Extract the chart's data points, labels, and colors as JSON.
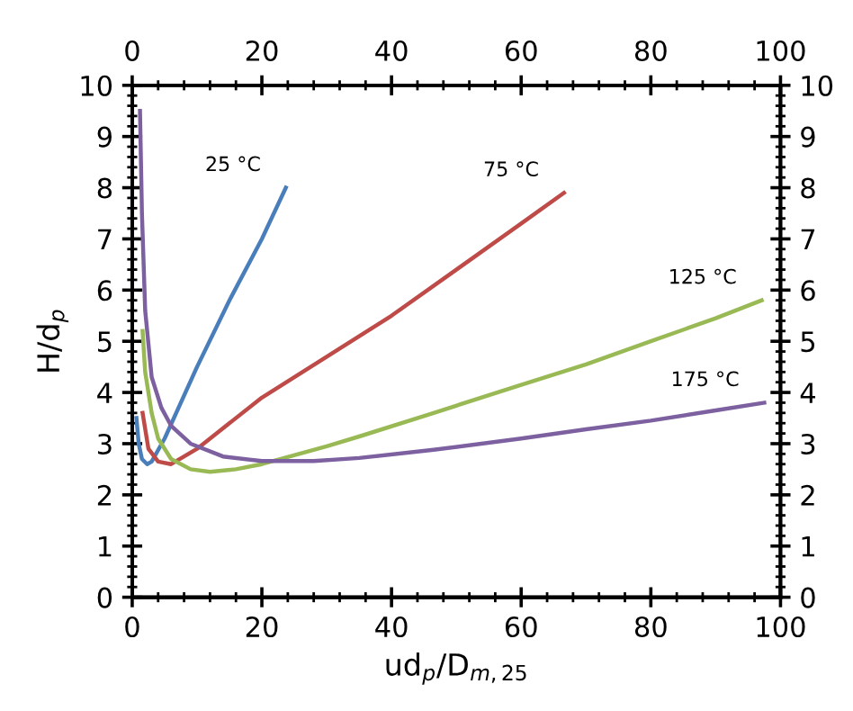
{
  "chart_data": {
    "type": "line",
    "xlabel": "ud$_{p}$/D$_{m,25}$",
    "ylabel": "H/d$_{p}$",
    "xlim": [
      0,
      100
    ],
    "xticks": [
      0,
      20,
      40,
      60,
      80,
      100
    ],
    "ylim": [
      0,
      10
    ],
    "yticks": [
      0,
      1,
      2,
      3,
      4,
      5,
      6,
      7,
      8,
      9,
      10
    ],
    "x2lim": [
      0,
      100
    ],
    "x2ticks": [
      0,
      20,
      40,
      60,
      80,
      100
    ],
    "y2lim": [
      0,
      10
    ],
    "y2ticks": [
      0,
      1,
      2,
      3,
      4,
      5,
      6,
      7,
      8,
      9,
      10
    ],
    "grid": false,
    "legend": false,
    "marker": "none",
    "line_style": "solid",
    "series": [
      {
        "name": "25 °C",
        "color": "#4a7ebb",
        "x": [
          0.65,
          1.0,
          1.5,
          2.3,
          3,
          5,
          10,
          15,
          20,
          23.7
        ],
        "values": [
          3.5,
          3.0,
          2.7,
          2.6,
          2.65,
          3.1,
          4.5,
          5.8,
          7.0,
          8.0
        ]
      },
      {
        "name": "75 °C",
        "color": "#be4b48",
        "x": [
          1.6,
          2.5,
          4,
          6,
          10,
          20,
          30,
          40,
          50,
          60,
          66.6
        ],
        "values": [
          3.6,
          2.9,
          2.65,
          2.6,
          2.9,
          3.9,
          4.7,
          5.5,
          6.4,
          7.3,
          7.9
        ]
      },
      {
        "name": "125 °C",
        "color": "#98b954",
        "x": [
          1.6,
          2,
          3,
          4,
          6,
          9,
          12,
          16,
          20,
          30,
          35,
          46.5,
          60,
          70,
          80,
          90,
          97.1
        ],
        "values": [
          5.2,
          4.4,
          3.6,
          3.1,
          2.7,
          2.5,
          2.45,
          2.5,
          2.6,
          2.95,
          3.14,
          3.6,
          4.15,
          4.55,
          5.0,
          5.45,
          5.8
        ]
      },
      {
        "name": "175 °C",
        "color": "#7d60a0",
        "x": [
          1.2,
          1.5,
          2,
          3,
          4.5,
          6,
          9,
          14,
          20,
          28,
          35,
          46.5,
          60,
          70,
          80,
          90,
          97.5
        ],
        "values": [
          9.5,
          7.5,
          5.6,
          4.3,
          3.7,
          3.35,
          3.0,
          2.75,
          2.66,
          2.66,
          2.72,
          2.88,
          3.1,
          3.28,
          3.45,
          3.65,
          3.8
        ]
      }
    ]
  }
}
